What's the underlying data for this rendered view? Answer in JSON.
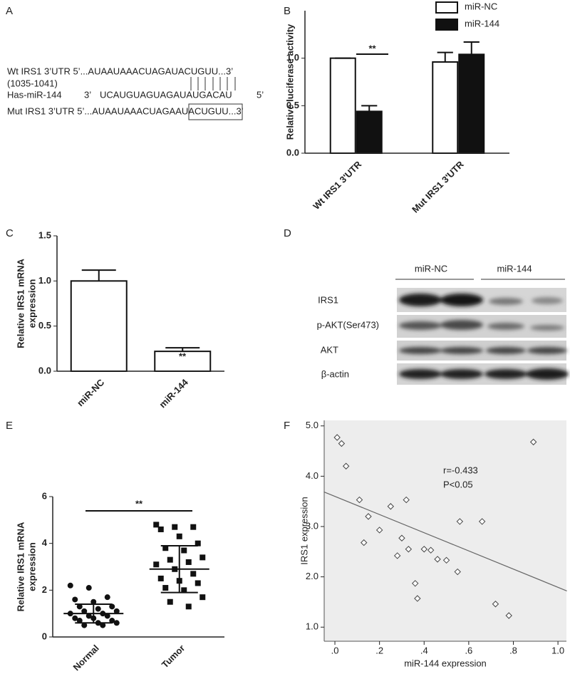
{
  "panel_labels": [
    "A",
    "B",
    "C",
    "D",
    "E",
    "F"
  ],
  "panel_a": {
    "wt": "Wt IRS1 3’UTR 5’...AUAAUAAACUAGAUACUGUU...3’",
    "wt_pos": "(1035-1041)",
    "mir_name": "Has-miR-144",
    "mir_3": "3’",
    "mir_seq": "UCAUGUAGUAGAUAUGACAU",
    "mir_5": "5’",
    "mut": "Mut IRS1 3’UTR 5’...AUAAUAAACUAGAAUACUGUU...3’"
  },
  "western_blot": {
    "groups": [
      "miR-NC",
      "miR-144"
    ],
    "rows": [
      "IRS1",
      "p-AKT(Ser473)",
      "AKT",
      "β-actin"
    ]
  },
  "chart_data": [
    {
      "type": "bar",
      "ylabel": [
        "Relative luciferase activity"
      ],
      "categories": [
        "Wt IRS1 3'UTR",
        "Mut IRS1 3'UTR"
      ],
      "series": [
        {
          "name": "miR-NC",
          "color": "#ffffff",
          "values": [
            1.0,
            0.96
          ],
          "errors": [
            0,
            0.1
          ]
        },
        {
          "name": "miR-144",
          "color": "#111111",
          "values": [
            0.44,
            1.04
          ],
          "errors": [
            0.06,
            0.13
          ]
        }
      ],
      "ylim": [
        0,
        1.5
      ],
      "yticks": [
        {
          "value": 0,
          "label": "0.0"
        },
        {
          "value": 0.5,
          "label": "0.5"
        },
        {
          "value": 1,
          "label": "1.0"
        }
      ],
      "annotations": [
        "**"
      ]
    },
    {
      "type": "bar",
      "ylabel": [
        "Relative IRS1 mRNA",
        "expression"
      ],
      "categories": [
        "miR-NC",
        "miR-144"
      ],
      "series": [
        {
          "color": "#ffffff",
          "values": [
            1.0,
            0.22
          ],
          "errors": [
            0.12,
            0.04
          ]
        }
      ],
      "ylim": [
        0,
        1.5
      ],
      "yticks": [
        {
          "value": 0,
          "label": "0.0"
        },
        {
          "value": 0.5,
          "label": "0.5"
        },
        {
          "value": 1,
          "label": "1.0"
        },
        {
          "value": 1.5,
          "label": "1.5"
        }
      ],
      "annotations": [
        "**"
      ]
    },
    {
      "type": "strip",
      "ylabel": [
        "Relative IRS1 mRNA",
        "expression"
      ],
      "categories": [
        "Normal",
        "Tumor"
      ],
      "groups": [
        {
          "marker": "circle",
          "mean": 1.0,
          "sd": 0.4,
          "values": [
            2.2,
            2.1,
            1.7,
            1.6,
            1.5,
            1.3,
            1.3,
            1.2,
            1.1,
            1.1,
            1.0,
            1.0,
            0.9,
            0.9,
            0.8,
            0.8,
            0.7,
            0.7,
            0.6,
            0.6,
            0.5,
            0.5
          ]
        },
        {
          "marker": "square",
          "mean": 2.9,
          "sd": 1.0,
          "values": [
            4.8,
            4.7,
            4.7,
            4.6,
            4.3,
            4.0,
            3.8,
            3.7,
            3.4,
            3.3,
            3.2,
            3.1,
            2.9,
            2.7,
            2.5,
            2.4,
            2.3,
            2.1,
            2.0,
            1.7,
            1.5,
            1.3
          ]
        }
      ],
      "ylim": [
        0,
        6
      ],
      "yticks": [
        0,
        2,
        4,
        6
      ],
      "annotations": [
        "**"
      ]
    },
    {
      "type": "scatter",
      "xlabel": "miR-144 expression",
      "ylabel": "IRS1 expression",
      "x": [
        0.01,
        0.03,
        0.05,
        0.11,
        0.15,
        0.13,
        0.2,
        0.25,
        0.32,
        0.3,
        0.28,
        0.33,
        0.4,
        0.43,
        0.46,
        0.5,
        0.36,
        0.37,
        0.55,
        0.56,
        0.66,
        0.72,
        0.78,
        0.89
      ],
      "y": [
        4.77,
        4.65,
        4.2,
        3.53,
        3.2,
        2.68,
        2.93,
        3.4,
        3.53,
        2.77,
        2.42,
        2.55,
        2.55,
        2.53,
        2.35,
        2.33,
        1.87,
        1.57,
        2.1,
        3.1,
        3.1,
        1.46,
        1.23,
        4.68
      ],
      "fit": {
        "x": [
          -0.05,
          1.04
        ],
        "y": [
          3.69,
          1.72
        ]
      },
      "xlim": [
        -0.048,
        1.038
      ],
      "ylim": [
        0.72,
        5.11
      ],
      "xticks": [
        {
          "value": 0,
          "label": ".0"
        },
        {
          "value": 0.2,
          "label": ".2"
        },
        {
          "value": 0.4,
          "label": ".4"
        },
        {
          "value": 0.6,
          "label": ".6"
        },
        {
          "value": 0.8,
          "label": ".8"
        },
        {
          "value": 1,
          "label": "1.0"
        }
      ],
      "yticks": [
        {
          "value": 1,
          "label": "1.0"
        },
        {
          "value": 2,
          "label": "2.0"
        },
        {
          "value": 3,
          "label": "3.0"
        },
        {
          "value": 4,
          "label": "4.0"
        },
        {
          "value": 5,
          "label": "5.0"
        }
      ],
      "annotations": [
        "r=-0.433",
        "P<0.05"
      ]
    }
  ]
}
